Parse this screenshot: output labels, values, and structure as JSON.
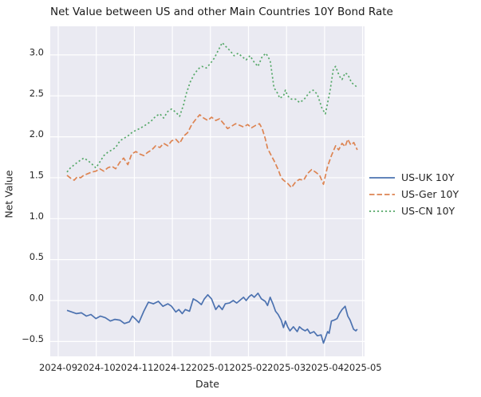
{
  "figure": {
    "title": "Net Value between US and other Main Countries 10Y Bond Rate",
    "xlabel": "Date",
    "ylabel": "Net Value",
    "plot_background_color": "#eaeaf2",
    "grid_color": "#ffffff",
    "text_color": "#262626"
  },
  "chart_data": {
    "type": "line",
    "title": "Net Value between US and other Main Countries 10Y Bond Rate",
    "xlabel": "Date",
    "ylabel": "Net Value",
    "grid": true,
    "legend_position": "outside-center-right",
    "x_unit": "months since 2024-09 tick",
    "x_ticks": [
      0,
      1,
      2,
      3,
      4,
      5,
      6,
      7,
      8
    ],
    "x_tick_labels": [
      "2024-09",
      "2024-10",
      "2024-11",
      "2024-12",
      "2025-01",
      "2025-02",
      "2025-03",
      "2025-04",
      "2025-05"
    ],
    "y_ticks": [
      3.0,
      2.5,
      2.0,
      1.5,
      1.0,
      0.5,
      0.0,
      -0.5
    ],
    "y_tick_labels": [
      "3.0",
      "2.5",
      "2.0",
      "1.5",
      "1.0",
      "0.5",
      "0.0",
      "−0.5"
    ],
    "xlim": [
      -0.21,
      8.05
    ],
    "ylim": [
      -0.68,
      3.35
    ],
    "series": [
      {
        "name": "US-UK 10Y",
        "color": "#4c72b0",
        "style": "solid",
        "points": [
          [
            0.23,
            -0.12
          ],
          [
            0.36,
            -0.14
          ],
          [
            0.48,
            -0.16
          ],
          [
            0.61,
            -0.15
          ],
          [
            0.74,
            -0.19
          ],
          [
            0.86,
            -0.17
          ],
          [
            0.99,
            -0.22
          ],
          [
            1.11,
            -0.19
          ],
          [
            1.24,
            -0.21
          ],
          [
            1.37,
            -0.25
          ],
          [
            1.49,
            -0.23
          ],
          [
            1.62,
            -0.24
          ],
          [
            1.74,
            -0.28
          ],
          [
            1.87,
            -0.26
          ],
          [
            1.95,
            -0.19
          ],
          [
            2.04,
            -0.23
          ],
          [
            2.12,
            -0.27
          ],
          [
            2.25,
            -0.13
          ],
          [
            2.37,
            -0.02
          ],
          [
            2.5,
            -0.04
          ],
          [
            2.63,
            -0.01
          ],
          [
            2.75,
            -0.07
          ],
          [
            2.88,
            -0.04
          ],
          [
            2.98,
            -0.07
          ],
          [
            3.09,
            -0.14
          ],
          [
            3.17,
            -0.11
          ],
          [
            3.26,
            -0.16
          ],
          [
            3.34,
            -0.11
          ],
          [
            3.45,
            -0.13
          ],
          [
            3.55,
            0.02
          ],
          [
            3.66,
            -0.01
          ],
          [
            3.76,
            -0.05
          ],
          [
            3.84,
            0.02
          ],
          [
            3.93,
            0.07
          ],
          [
            4.03,
            0.02
          ],
          [
            4.14,
            -0.11
          ],
          [
            4.22,
            -0.06
          ],
          [
            4.31,
            -0.11
          ],
          [
            4.39,
            -0.04
          ],
          [
            4.5,
            -0.03
          ],
          [
            4.6,
            0.0
          ],
          [
            4.69,
            -0.03
          ],
          [
            4.77,
            0.0
          ],
          [
            4.87,
            0.04
          ],
          [
            4.94,
            0.0
          ],
          [
            5.02,
            0.05
          ],
          [
            5.08,
            0.07
          ],
          [
            5.15,
            0.04
          ],
          [
            5.25,
            0.09
          ],
          [
            5.34,
            0.02
          ],
          [
            5.44,
            -0.01
          ],
          [
            5.5,
            -0.06
          ],
          [
            5.57,
            0.04
          ],
          [
            5.65,
            -0.05
          ],
          [
            5.71,
            -0.13
          ],
          [
            5.78,
            -0.17
          ],
          [
            5.86,
            -0.24
          ],
          [
            5.92,
            -0.33
          ],
          [
            5.97,
            -0.25
          ],
          [
            6.03,
            -0.32
          ],
          [
            6.09,
            -0.37
          ],
          [
            6.18,
            -0.32
          ],
          [
            6.28,
            -0.38
          ],
          [
            6.34,
            -0.32
          ],
          [
            6.41,
            -0.35
          ],
          [
            6.49,
            -0.37
          ],
          [
            6.55,
            -0.35
          ],
          [
            6.62,
            -0.4
          ],
          [
            6.72,
            -0.38
          ],
          [
            6.81,
            -0.43
          ],
          [
            6.91,
            -0.42
          ],
          [
            6.97,
            -0.52
          ],
          [
            7.08,
            -0.38
          ],
          [
            7.12,
            -0.4
          ],
          [
            7.18,
            -0.25
          ],
          [
            7.25,
            -0.24
          ],
          [
            7.33,
            -0.22
          ],
          [
            7.39,
            -0.16
          ],
          [
            7.46,
            -0.11
          ],
          [
            7.54,
            -0.07
          ],
          [
            7.61,
            -0.19
          ],
          [
            7.67,
            -0.24
          ],
          [
            7.76,
            -0.35
          ],
          [
            7.82,
            -0.37
          ],
          [
            7.86,
            -0.35
          ]
        ]
      },
      {
        "name": "US-Ger 10Y",
        "color": "#dd8452",
        "style": "dashed",
        "points": [
          [
            0.23,
            1.53
          ],
          [
            0.34,
            1.49
          ],
          [
            0.42,
            1.47
          ],
          [
            0.5,
            1.51
          ],
          [
            0.59,
            1.5
          ],
          [
            0.67,
            1.53
          ],
          [
            0.78,
            1.55
          ],
          [
            0.88,
            1.57
          ],
          [
            0.99,
            1.58
          ],
          [
            1.09,
            1.61
          ],
          [
            1.2,
            1.58
          ],
          [
            1.3,
            1.62
          ],
          [
            1.41,
            1.64
          ],
          [
            1.51,
            1.61
          ],
          [
            1.62,
            1.69
          ],
          [
            1.72,
            1.74
          ],
          [
            1.83,
            1.66
          ],
          [
            1.93,
            1.79
          ],
          [
            2.04,
            1.82
          ],
          [
            2.14,
            1.79
          ],
          [
            2.25,
            1.77
          ],
          [
            2.35,
            1.81
          ],
          [
            2.46,
            1.84
          ],
          [
            2.56,
            1.89
          ],
          [
            2.67,
            1.87
          ],
          [
            2.77,
            1.92
          ],
          [
            2.88,
            1.89
          ],
          [
            2.98,
            1.95
          ],
          [
            3.09,
            1.97
          ],
          [
            3.19,
            1.92
          ],
          [
            3.3,
            2.01
          ],
          [
            3.4,
            2.05
          ],
          [
            3.51,
            2.15
          ],
          [
            3.61,
            2.21
          ],
          [
            3.72,
            2.27
          ],
          [
            3.82,
            2.23
          ],
          [
            3.93,
            2.2
          ],
          [
            4.03,
            2.24
          ],
          [
            4.14,
            2.2
          ],
          [
            4.24,
            2.22
          ],
          [
            4.35,
            2.16
          ],
          [
            4.45,
            2.1
          ],
          [
            4.56,
            2.13
          ],
          [
            4.66,
            2.16
          ],
          [
            4.77,
            2.14
          ],
          [
            4.87,
            2.12
          ],
          [
            4.98,
            2.15
          ],
          [
            5.08,
            2.11
          ],
          [
            5.19,
            2.14
          ],
          [
            5.29,
            2.16
          ],
          [
            5.36,
            2.1
          ],
          [
            5.44,
            1.98
          ],
          [
            5.5,
            1.86
          ],
          [
            5.61,
            1.76
          ],
          [
            5.67,
            1.71
          ],
          [
            5.78,
            1.6
          ],
          [
            5.86,
            1.5
          ],
          [
            5.92,
            1.47
          ],
          [
            6.03,
            1.43
          ],
          [
            6.13,
            1.38
          ],
          [
            6.24,
            1.45
          ],
          [
            6.34,
            1.48
          ],
          [
            6.45,
            1.47
          ],
          [
            6.55,
            1.55
          ],
          [
            6.66,
            1.6
          ],
          [
            6.76,
            1.57
          ],
          [
            6.87,
            1.53
          ],
          [
            6.97,
            1.42
          ],
          [
            7.08,
            1.64
          ],
          [
            7.18,
            1.77
          ],
          [
            7.29,
            1.89
          ],
          [
            7.37,
            1.84
          ],
          [
            7.46,
            1.92
          ],
          [
            7.54,
            1.88
          ],
          [
            7.61,
            1.97
          ],
          [
            7.69,
            1.9
          ],
          [
            7.77,
            1.93
          ],
          [
            7.86,
            1.84
          ]
        ]
      },
      {
        "name": "US-CN 10Y",
        "color": "#55a868",
        "style": "dotted",
        "points": [
          [
            0.23,
            1.57
          ],
          [
            0.32,
            1.62
          ],
          [
            0.4,
            1.65
          ],
          [
            0.48,
            1.68
          ],
          [
            0.57,
            1.71
          ],
          [
            0.67,
            1.74
          ],
          [
            0.78,
            1.71
          ],
          [
            0.88,
            1.67
          ],
          [
            0.99,
            1.62
          ],
          [
            1.09,
            1.69
          ],
          [
            1.2,
            1.77
          ],
          [
            1.3,
            1.81
          ],
          [
            1.41,
            1.84
          ],
          [
            1.51,
            1.87
          ],
          [
            1.62,
            1.95
          ],
          [
            1.72,
            1.98
          ],
          [
            1.83,
            2.01
          ],
          [
            1.93,
            2.05
          ],
          [
            2.04,
            2.08
          ],
          [
            2.14,
            2.1
          ],
          [
            2.25,
            2.13
          ],
          [
            2.35,
            2.16
          ],
          [
            2.46,
            2.2
          ],
          [
            2.56,
            2.25
          ],
          [
            2.67,
            2.28
          ],
          [
            2.77,
            2.23
          ],
          [
            2.88,
            2.31
          ],
          [
            2.98,
            2.34
          ],
          [
            3.09,
            2.3
          ],
          [
            3.19,
            2.25
          ],
          [
            3.3,
            2.4
          ],
          [
            3.36,
            2.52
          ],
          [
            3.47,
            2.67
          ],
          [
            3.57,
            2.76
          ],
          [
            3.68,
            2.83
          ],
          [
            3.78,
            2.86
          ],
          [
            3.89,
            2.84
          ],
          [
            3.99,
            2.89
          ],
          [
            4.1,
            2.96
          ],
          [
            4.2,
            3.05
          ],
          [
            4.31,
            3.15
          ],
          [
            4.41,
            3.1
          ],
          [
            4.52,
            3.05
          ],
          [
            4.62,
            2.99
          ],
          [
            4.73,
            3.02
          ],
          [
            4.83,
            2.98
          ],
          [
            4.94,
            2.94
          ],
          [
            5.04,
            2.99
          ],
          [
            5.15,
            2.91
          ],
          [
            5.25,
            2.86
          ],
          [
            5.36,
            2.98
          ],
          [
            5.46,
            3.02
          ],
          [
            5.57,
            2.93
          ],
          [
            5.67,
            2.6
          ],
          [
            5.78,
            2.52
          ],
          [
            5.82,
            2.47
          ],
          [
            5.92,
            2.5
          ],
          [
            5.97,
            2.57
          ],
          [
            6.03,
            2.5
          ],
          [
            6.13,
            2.46
          ],
          [
            6.24,
            2.46
          ],
          [
            6.34,
            2.42
          ],
          [
            6.45,
            2.45
          ],
          [
            6.53,
            2.5
          ],
          [
            6.62,
            2.55
          ],
          [
            6.7,
            2.57
          ],
          [
            6.81,
            2.52
          ],
          [
            6.93,
            2.35
          ],
          [
            7.02,
            2.28
          ],
          [
            7.14,
            2.55
          ],
          [
            7.23,
            2.83
          ],
          [
            7.29,
            2.86
          ],
          [
            7.39,
            2.74
          ],
          [
            7.46,
            2.7
          ],
          [
            7.54,
            2.78
          ],
          [
            7.61,
            2.76
          ],
          [
            7.71,
            2.66
          ],
          [
            7.8,
            2.63
          ],
          [
            7.86,
            2.6
          ]
        ]
      }
    ]
  }
}
